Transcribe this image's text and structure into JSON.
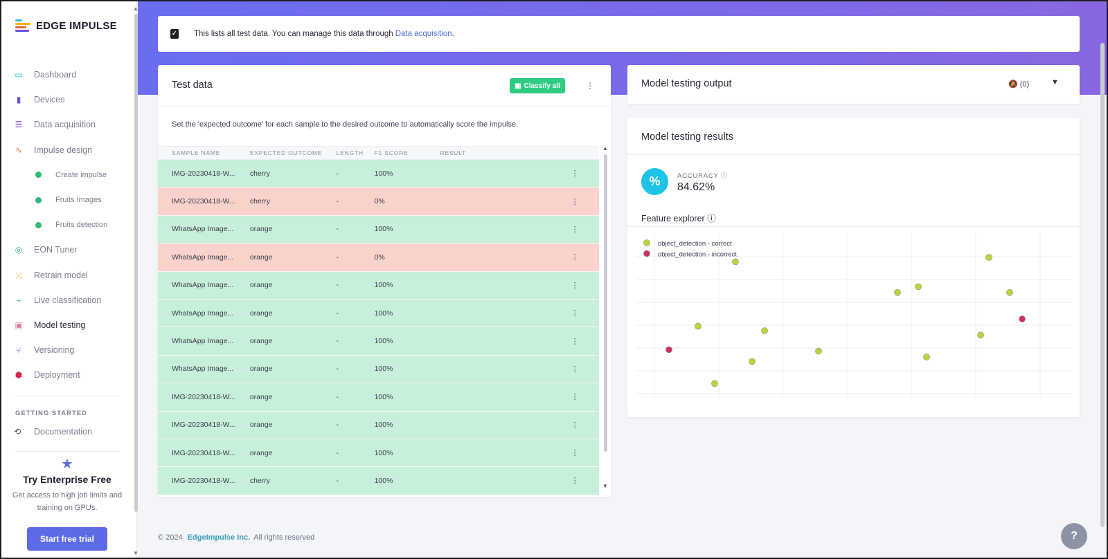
{
  "brand": {
    "name": "EDGE IMPULSE"
  },
  "sidebar": {
    "items": [
      {
        "label": "Dashboard",
        "icon": "monitor-icon",
        "color": "#23b7d6"
      },
      {
        "label": "Devices",
        "icon": "chip-icon",
        "color": "#6a4fd6"
      },
      {
        "label": "Data acquisition",
        "icon": "database-icon",
        "color": "#5b2bb8"
      },
      {
        "label": "Impulse design",
        "icon": "pulse-icon",
        "color": "#e8643a"
      },
      {
        "label": "Create impulse",
        "sub": true
      },
      {
        "label": "Fruits Images",
        "sub": true
      },
      {
        "label": "Fruits detection",
        "sub": true
      },
      {
        "label": "EON Tuner",
        "icon": "compass-icon",
        "color": "#2dbb73"
      },
      {
        "label": "Retrain model",
        "icon": "shuffle-icon",
        "color": "#f2b01e"
      },
      {
        "label": "Live classification",
        "icon": "live-icon",
        "color": "#2dbb73"
      },
      {
        "label": "Model testing",
        "icon": "clipboard-check-icon",
        "color": "#e87a9c",
        "active": true
      },
      {
        "label": "Versioning",
        "icon": "branch-icon",
        "color": "#4a5cc8"
      },
      {
        "label": "Deployment",
        "icon": "box-icon",
        "color": "#d8284f"
      }
    ],
    "getting_started_label": "GETTING STARTED",
    "documentation_label": "Documentation",
    "promo": {
      "title": "Try Enterprise Free",
      "text": "Get access to high job limits and training on GPUs.",
      "button": "Start free trial"
    }
  },
  "banner": {
    "text": "This lists all test data. You can manage this data through ",
    "link": "Data acquisition",
    "suffix": "."
  },
  "test_data": {
    "title": "Test data",
    "classify_button": "Classify all",
    "description": "Set the 'expected outcome' for each sample to the desired outcome to automatically score the impulse.",
    "columns": [
      "SAMPLE NAME",
      "EXPECTED OUTCOME",
      "LENGTH",
      "F1 SCORE",
      "RESULT"
    ],
    "rows": [
      {
        "name": "IMG-20230418-W...",
        "outcome": "cherry",
        "length": "-",
        "f1": "100%",
        "status": "ok"
      },
      {
        "name": "IMG-20230418-W...",
        "outcome": "cherry",
        "length": "-",
        "f1": "0%",
        "status": "bad"
      },
      {
        "name": "WhatsApp Image...",
        "outcome": "orange",
        "length": "-",
        "f1": "100%",
        "status": "ok"
      },
      {
        "name": "WhatsApp Image...",
        "outcome": "orange",
        "length": "-",
        "f1": "0%",
        "status": "bad"
      },
      {
        "name": "WhatsApp Image...",
        "outcome": "orange",
        "length": "-",
        "f1": "100%",
        "status": "ok"
      },
      {
        "name": "WhatsApp Image...",
        "outcome": "orange",
        "length": "-",
        "f1": "100%",
        "status": "ok"
      },
      {
        "name": "WhatsApp Image...",
        "outcome": "orange",
        "length": "-",
        "f1": "100%",
        "status": "ok"
      },
      {
        "name": "WhatsApp Image...",
        "outcome": "orange",
        "length": "-",
        "f1": "100%",
        "status": "ok"
      },
      {
        "name": "IMG-20230418-W...",
        "outcome": "orange",
        "length": "-",
        "f1": "100%",
        "status": "ok"
      },
      {
        "name": "IMG-20230418-W...",
        "outcome": "orange",
        "length": "-",
        "f1": "100%",
        "status": "ok"
      },
      {
        "name": "IMG-20230418-W...",
        "outcome": "orange",
        "length": "-",
        "f1": "100%",
        "status": "ok"
      },
      {
        "name": "IMG-20230418-W...",
        "outcome": "cherry",
        "length": "-",
        "f1": "100%",
        "status": "ok"
      }
    ]
  },
  "output": {
    "title": "Model testing output",
    "notification_count": "(0)"
  },
  "results": {
    "title": "Model testing results",
    "accuracy_label": "ACCURACY",
    "accuracy_value": "84.62%",
    "feature_explorer_label": "Feature explorer"
  },
  "chart_data": {
    "type": "scatter",
    "title": "",
    "xlabel": "",
    "ylabel": "",
    "grid": true,
    "legend_position": "top-left",
    "xlim": [
      0,
      10
    ],
    "ylim": [
      0,
      10
    ],
    "series": [
      {
        "name": "object_detection - correct",
        "color": "#b7d836",
        "points": [
          [
            2.2,
            8.9
          ],
          [
            6.1,
            6.8
          ],
          [
            8.3,
            9.2
          ],
          [
            6.6,
            7.2
          ],
          [
            8.8,
            6.8
          ],
          [
            1.3,
            4.5
          ],
          [
            2.9,
            4.2
          ],
          [
            1.7,
            0.6
          ],
          [
            2.6,
            2.1
          ],
          [
            4.2,
            2.8
          ],
          [
            6.8,
            2.4
          ],
          [
            8.1,
            3.9
          ]
        ]
      },
      {
        "name": "object_detection - incorrect",
        "color": "#cd2e63",
        "points": [
          [
            0.6,
            2.9
          ],
          [
            9.1,
            5.0
          ]
        ]
      }
    ]
  },
  "footer": {
    "copyright": "© 2024",
    "company": "EdgeImpulse Inc.",
    "rights": "All rights reserved"
  }
}
